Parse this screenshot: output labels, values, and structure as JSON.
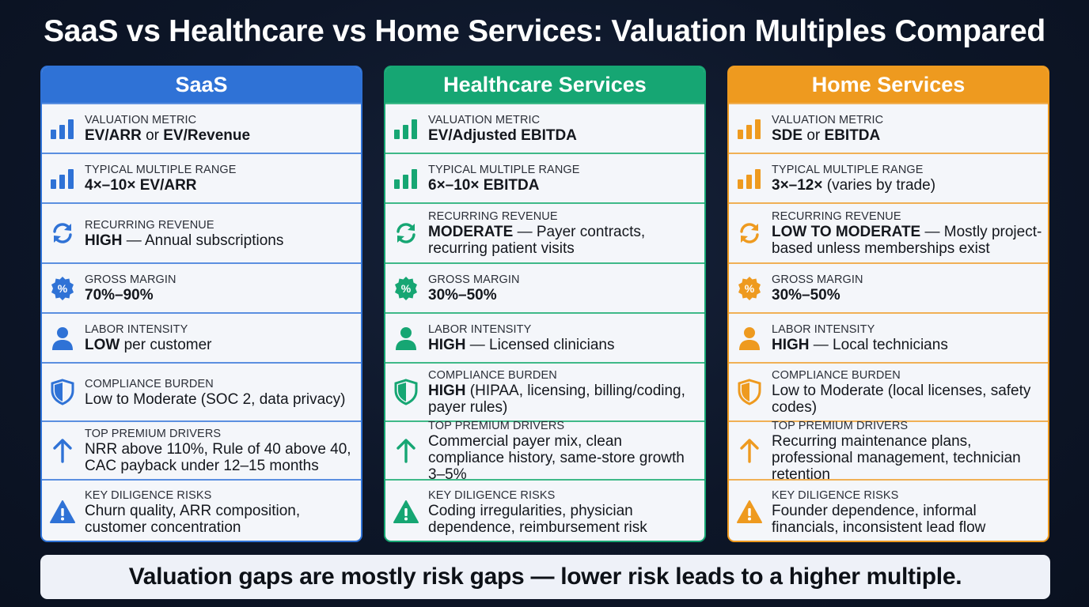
{
  "title": "SaaS vs Healthcare vs Home Services: Valuation Multiples Compared",
  "colors": {
    "saas": "#2f72d6",
    "health": "#16a673",
    "home": "#ee9a1f"
  },
  "columns": [
    {
      "key": "saas",
      "header": "SaaS",
      "rows": [
        {
          "label": "VALUATION METRIC",
          "bold": "EV/ARR",
          "rest": " or ",
          "bold2": "EV/Revenue",
          "icon": "bar-chart-icon"
        },
        {
          "label": "TYPICAL MULTIPLE RANGE",
          "bold": "4×–10× EV/ARR",
          "rest": "",
          "icon": "bar-chart-icon"
        },
        {
          "label": "RECURRING REVENUE",
          "bold": "HIGH",
          "rest": " — Annual subscriptions",
          "icon": "refresh-icon"
        },
        {
          "label": "GROSS MARGIN",
          "bold": "70%–90%",
          "rest": "",
          "icon": "percent-badge-icon"
        },
        {
          "label": "LABOR INTENSITY",
          "bold": "LOW",
          "rest": " per customer",
          "icon": "person-icon"
        },
        {
          "label": "COMPLIANCE BURDEN",
          "bold": "",
          "rest": "Low to Moderate (SOC 2, data privacy)",
          "icon": "shield-icon"
        },
        {
          "label": "TOP PREMIUM DRIVERS",
          "bold": "",
          "rest": "NRR above 110%, Rule of 40 above 40, CAC payback under 12–15 months",
          "icon": "arrow-up-icon"
        },
        {
          "label": "KEY DILIGENCE RISKS",
          "bold": "",
          "rest": "Churn quality, ARR composition, customer concentration",
          "icon": "warning-icon"
        }
      ]
    },
    {
      "key": "health",
      "header": "Healthcare Services",
      "rows": [
        {
          "label": "VALUATION METRIC",
          "bold": "EV/Adjusted EBITDA",
          "rest": "",
          "icon": "bar-chart-icon"
        },
        {
          "label": "TYPICAL MULTIPLE RANGE",
          "bold": "6×–10× EBITDA",
          "rest": "",
          "icon": "bar-chart-icon"
        },
        {
          "label": "RECURRING REVENUE",
          "bold": "MODERATE",
          "rest": " — Payer contracts, recurring patient visits",
          "icon": "refresh-icon"
        },
        {
          "label": "GROSS MARGIN",
          "bold": "30%–50%",
          "rest": "",
          "icon": "percent-badge-icon"
        },
        {
          "label": "LABOR INTENSITY",
          "bold": "HIGH",
          "rest": " — Licensed clinicians",
          "icon": "person-icon"
        },
        {
          "label": "COMPLIANCE BURDEN",
          "bold": "HIGH",
          "rest": " (HIPAA, licensing, billing/coding, payer rules)",
          "icon": "shield-icon"
        },
        {
          "label": "TOP PREMIUM DRIVERS",
          "bold": "",
          "rest": "Commercial payer mix, clean compliance history, same-store growth 3–5%",
          "icon": "arrow-up-icon"
        },
        {
          "label": "KEY DILIGENCE RISKS",
          "bold": "",
          "rest": "Coding irregularities, physician dependence, reimbursement risk",
          "icon": "warning-icon"
        }
      ]
    },
    {
      "key": "home",
      "header": "Home Services",
      "rows": [
        {
          "label": "VALUATION METRIC",
          "bold": "SDE",
          "rest": " or ",
          "bold2": "EBITDA",
          "icon": "bar-chart-icon"
        },
        {
          "label": "TYPICAL MULTIPLE RANGE",
          "bold": "3×–12×",
          "rest": " (varies by trade)",
          "icon": "bar-chart-icon"
        },
        {
          "label": "RECURRING REVENUE",
          "bold": "LOW TO MODERATE",
          "rest": " — Mostly project-based unless memberships exist",
          "icon": "refresh-icon"
        },
        {
          "label": "GROSS MARGIN",
          "bold": "30%–50%",
          "rest": "",
          "icon": "percent-badge-icon"
        },
        {
          "label": "LABOR INTENSITY",
          "bold": "HIGH",
          "rest": " — Local technicians",
          "icon": "person-icon"
        },
        {
          "label": "COMPLIANCE BURDEN",
          "bold": "",
          "rest": "Low to Moderate (local licenses, safety codes)",
          "icon": "shield-icon"
        },
        {
          "label": "TOP PREMIUM DRIVERS",
          "bold": "",
          "rest": "Recurring maintenance plans, professional management, technician retention",
          "icon": "arrow-up-icon"
        },
        {
          "label": "KEY DILIGENCE RISKS",
          "bold": "",
          "rest": "Founder dependence, informal financials, inconsistent lead flow",
          "icon": "warning-icon"
        }
      ]
    }
  ],
  "banner": "Valuation gaps are mostly risk gaps — lower risk leads to a higher multiple."
}
